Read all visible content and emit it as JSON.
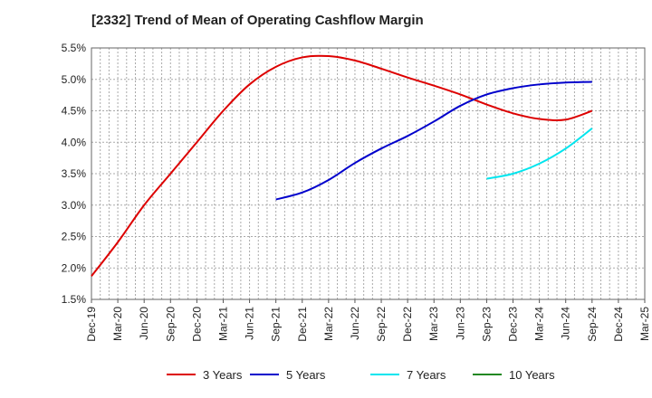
{
  "chart_data": {
    "type": "line",
    "title": "[2332]  Trend of Mean of Operating Cashflow Margin",
    "xlabel": "",
    "ylabel": "",
    "x_ticks": [
      "Dec-19",
      "Mar-20",
      "Jun-20",
      "Sep-20",
      "Dec-20",
      "Mar-21",
      "Jun-21",
      "Sep-21",
      "Dec-21",
      "Mar-22",
      "Jun-22",
      "Sep-22",
      "Dec-22",
      "Mar-23",
      "Jun-23",
      "Sep-23",
      "Dec-23",
      "Mar-24",
      "Jun-24",
      "Sep-24",
      "Dec-24",
      "Mar-25"
    ],
    "y_ticks": [
      "1.5%",
      "2.0%",
      "2.5%",
      "3.0%",
      "3.5%",
      "4.0%",
      "4.5%",
      "5.0%",
      "5.5%"
    ],
    "ylim": [
      1.5,
      5.5
    ],
    "y_unit": "%",
    "grid": true,
    "legend_position": "bottom",
    "series": [
      {
        "name": "3 Years",
        "color": "#dd0000",
        "points": [
          [
            "Dec-19",
            1.87
          ],
          [
            "Mar-20",
            2.41
          ],
          [
            "Jun-20",
            3.0
          ],
          [
            "Sep-20",
            3.5
          ],
          [
            "Dec-20",
            4.0
          ],
          [
            "Mar-21",
            4.5
          ],
          [
            "Jun-21",
            4.92
          ],
          [
            "Sep-21",
            5.2
          ],
          [
            "Dec-21",
            5.35
          ],
          [
            "Mar-22",
            5.37
          ],
          [
            "Jun-22",
            5.3
          ],
          [
            "Sep-22",
            5.17
          ],
          [
            "Dec-22",
            5.03
          ],
          [
            "Mar-23",
            4.9
          ],
          [
            "Jun-23",
            4.76
          ],
          [
            "Sep-23",
            4.6
          ],
          [
            "Dec-23",
            4.46
          ],
          [
            "Mar-24",
            4.37
          ],
          [
            "Jun-24",
            4.36
          ],
          [
            "Sep-24",
            4.5
          ]
        ]
      },
      {
        "name": "5 Years",
        "color": "#0000cc",
        "points": [
          [
            "Sep-21",
            3.09
          ],
          [
            "Dec-21",
            3.2
          ],
          [
            "Mar-22",
            3.4
          ],
          [
            "Jun-22",
            3.67
          ],
          [
            "Sep-22",
            3.9
          ],
          [
            "Dec-22",
            4.1
          ],
          [
            "Mar-23",
            4.33
          ],
          [
            "Jun-23",
            4.58
          ],
          [
            "Sep-23",
            4.76
          ],
          [
            "Dec-23",
            4.86
          ],
          [
            "Mar-24",
            4.92
          ],
          [
            "Jun-24",
            4.95
          ],
          [
            "Sep-24",
            4.96
          ]
        ]
      },
      {
        "name": "7 Years",
        "color": "#00e5ee",
        "points": [
          [
            "Sep-23",
            3.42
          ],
          [
            "Dec-23",
            3.5
          ],
          [
            "Mar-24",
            3.66
          ],
          [
            "Jun-24",
            3.9
          ],
          [
            "Sep-24",
            4.22
          ]
        ]
      },
      {
        "name": "10 Years",
        "color": "#228822",
        "points": []
      }
    ]
  }
}
